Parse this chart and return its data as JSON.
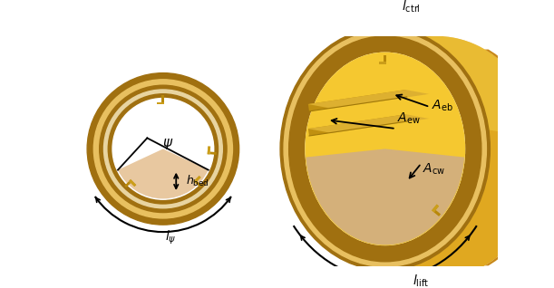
{
  "bg_color": "#ffffff",
  "gold_ring_dark": "#A07010",
  "gold_ring_mid": "#C89020",
  "gold_ring_light": "#E8C060",
  "gold_ring_outer": "#B88020",
  "interior_bg": "#F0E0A0",
  "bed_peach": "#E8C8A0",
  "bed_light": "#F0D8B8",
  "kiln_yellow": "#F5C832",
  "kiln_orange": "#D4920A",
  "kiln_deep": "#C07808",
  "lifter_gold": "#B8880A",
  "lifter_top": "#D4A820",
  "shelf_side": "#C09010",
  "shelf_top": "#D8B040",
  "cyl_surface": "#E0A820",
  "cyl_top": "#F0C840",
  "cyl_right_edge": "#C88818",
  "arrow_color": "#000000"
}
